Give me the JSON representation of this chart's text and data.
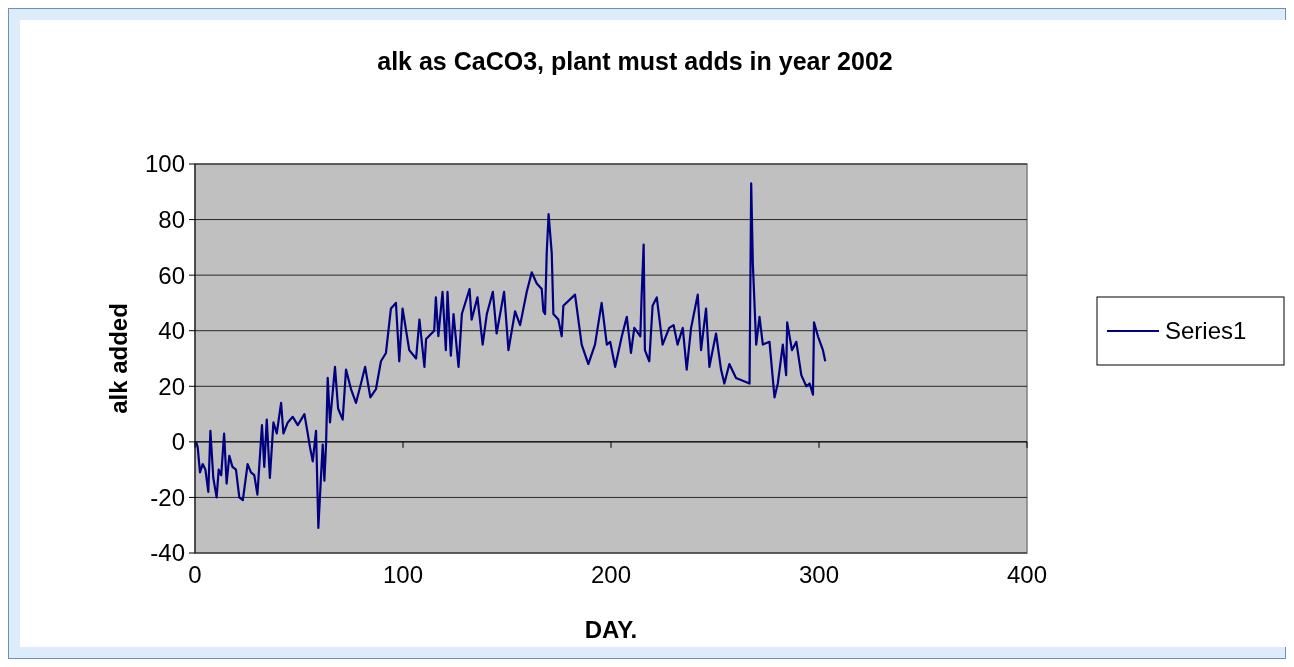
{
  "chart_data": {
    "type": "line",
    "title": "alk as CaCO3, plant must adds in year 2002",
    "xlabel": "DAY.",
    "ylabel": "alk added",
    "x": [
      0.5,
      1.3,
      2.4,
      3.7,
      5,
      6.4,
      7.4,
      8.8,
      10.4,
      11.4,
      12.6,
      14,
      15.2,
      16.5,
      18,
      19.7,
      21.3,
      23,
      25.3,
      26.9,
      28.5,
      30,
      32.2,
      33.3,
      34.5,
      36,
      37.7,
      39.3,
      41.4,
      42.5,
      44.6,
      47,
      49.4,
      52.6,
      54.2,
      55.3,
      56.6,
      58.2,
      59.3,
      60.4,
      61.4,
      62.2,
      63,
      63.8,
      64.9,
      67.3,
      68.8,
      71,
      72.6,
      75,
      77.4,
      79.8,
      81.8,
      84.3,
      87,
      89.4,
      91.8,
      94.2,
      96.6,
      98.2,
      99.8,
      103,
      106.3,
      107.9,
      110.3,
      111.1,
      115,
      115.8,
      117,
      119,
      120.6,
      121.4,
      123,
      124.3,
      126.7,
      128.3,
      132,
      133,
      135.8,
      138.3,
      140.3,
      143.2,
      145,
      146.7,
      148.6,
      150.7,
      153.9,
      156.3,
      159.5,
      161.9,
      164.3,
      166.7,
      167.5,
      168.3,
      169.1,
      170,
      171.5,
      172.3,
      174.7,
      176.3,
      177.1,
      182.7,
      185.9,
      189.1,
      192.3,
      195.5,
      198,
      199.6,
      202,
      205.2,
      207.6,
      209.6,
      211.2,
      214.1,
      214.7,
      215.7,
      216.3,
      218.4,
      220,
      222,
      224.8,
      228,
      230.1,
      232,
      234.5,
      236.4,
      238.5,
      241.7,
      243.3,
      245.7,
      247.3,
      250.5,
      252.9,
      254.5,
      256.9,
      260.1,
      266.6,
      267.4,
      268.2,
      269.8,
      271.4,
      273,
      276.2,
      278.6,
      280.2,
      282.6,
      284.2,
      284.7,
      287,
      289.1,
      291.5,
      293.9,
      295.5,
      297.1,
      297.6,
      299.5,
      301.9,
      303
    ],
    "series": [
      {
        "name": "Series1",
        "color": "#000080",
        "values": [
          0,
          -2,
          -11,
          -8,
          -10,
          -18,
          4,
          -13,
          -20,
          -10,
          -12,
          3,
          -15,
          -5,
          -9,
          -10,
          -20,
          -21,
          -8,
          -11,
          -12,
          -19,
          6,
          -9,
          8,
          -13,
          7,
          3,
          14,
          3,
          7,
          9,
          6,
          10,
          3,
          -2,
          -7,
          4,
          -31,
          -15,
          -1,
          -14,
          -1,
          23,
          7,
          27,
          12,
          8,
          26,
          19,
          14,
          21,
          27,
          16,
          19,
          29,
          32,
          48,
          50,
          29,
          48,
          33,
          30,
          44,
          27,
          37,
          40,
          52,
          38,
          54,
          33,
          54,
          31,
          46,
          27,
          46,
          55,
          44,
          52,
          35,
          46,
          54,
          39,
          46,
          54,
          33,
          47,
          42,
          54,
          61,
          57,
          55,
          47,
          46,
          68,
          82,
          68,
          46,
          44,
          38,
          49,
          53,
          35,
          28,
          35,
          50,
          35,
          36,
          27,
          38,
          45,
          32,
          41,
          38,
          52,
          71,
          33,
          29,
          49,
          52,
          35,
          41,
          42,
          35,
          41,
          26,
          41,
          53,
          33,
          48,
          27,
          39,
          26,
          21,
          28,
          23,
          21,
          93,
          64,
          35,
          45,
          35,
          36,
          16,
          21,
          35,
          24,
          43,
          33,
          36,
          24,
          20,
          21,
          17,
          43,
          38,
          33,
          29
        ]
      }
    ],
    "xlim": [
      0,
      400
    ],
    "xticks": [
      0,
      100,
      200,
      300,
      400
    ],
    "ylim": [
      -40,
      100
    ],
    "yticks": [
      -40,
      -20,
      0,
      20,
      40,
      60,
      80,
      100
    ],
    "grid": "y",
    "legend": "right"
  }
}
